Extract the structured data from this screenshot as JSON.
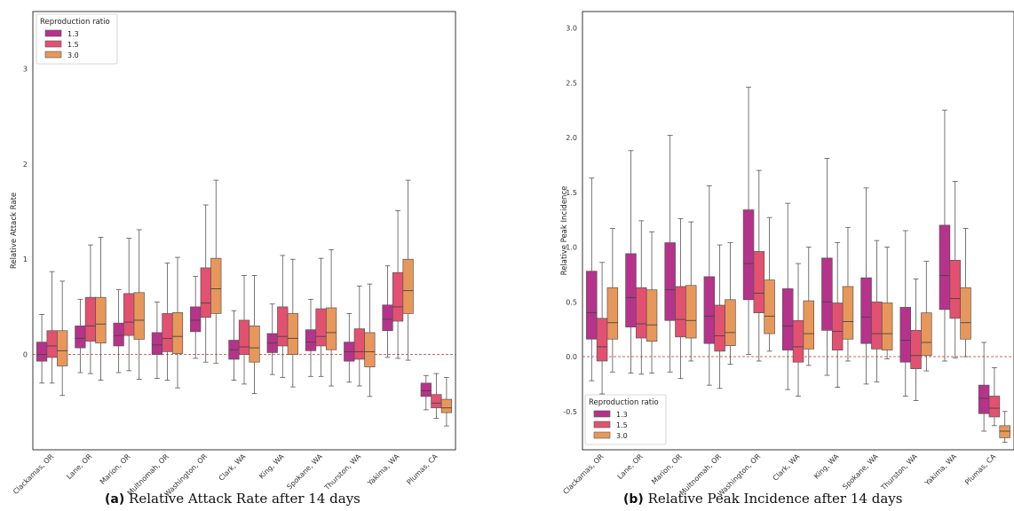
{
  "chart_data": [
    {
      "type": "box",
      "caption_letter": "(a)",
      "caption_text": "Relative Attack Rate after 14 days",
      "xlabel": "",
      "ylabel": "Relative Attack Rate",
      "ylim": [
        -1.0,
        3.6
      ],
      "yticks": [
        0,
        1,
        2,
        3
      ],
      "reference_line": 0,
      "legend": {
        "title": "Reproduction ratio",
        "position": "top-left",
        "entries": [
          "1.3",
          "1.5",
          "3.0"
        ]
      },
      "categories": [
        "Clackamas, OR",
        "Lane, OR",
        "Marion, OR",
        "Multnomah, OR",
        "Washington, OR",
        "Clark, WA",
        "King, WA",
        "Spokane, WA",
        "Thurston, WA",
        "Yakima, WA",
        "Plumas, CA"
      ],
      "series": [
        {
          "name": "1.3",
          "color": "#b5338a",
          "boxes": [
            {
              "min": -0.3,
              "q1": -0.07,
              "median": 0.0,
              "q3": 0.13,
              "max": 0.42
            },
            {
              "min": -0.19,
              "q1": 0.07,
              "median": 0.17,
              "q3": 0.3,
              "max": 0.58
            },
            {
              "min": -0.19,
              "q1": 0.09,
              "median": 0.2,
              "q3": 0.33,
              "max": 0.68
            },
            {
              "min": -0.25,
              "q1": 0.0,
              "median": 0.1,
              "q3": 0.23,
              "max": 0.55
            },
            {
              "min": -0.04,
              "q1": 0.24,
              "median": 0.36,
              "q3": 0.5,
              "max": 0.82
            },
            {
              "min": -0.27,
              "q1": -0.05,
              "median": 0.05,
              "q3": 0.15,
              "max": 0.46
            },
            {
              "min": -0.21,
              "q1": 0.02,
              "median": 0.12,
              "q3": 0.22,
              "max": 0.53
            },
            {
              "min": -0.23,
              "q1": 0.04,
              "median": 0.13,
              "q3": 0.26,
              "max": 0.58
            },
            {
              "min": -0.29,
              "q1": -0.07,
              "median": 0.03,
              "q3": 0.13,
              "max": 0.43
            },
            {
              "min": -0.03,
              "q1": 0.25,
              "median": 0.37,
              "q3": 0.52,
              "max": 0.93
            },
            {
              "min": -0.58,
              "q1": -0.44,
              "median": -0.38,
              "q3": -0.3,
              "max": -0.22
            }
          ]
        },
        {
          "name": "1.5",
          "color": "#e25170",
          "boxes": [
            {
              "min": -0.3,
              "q1": -0.03,
              "median": 0.09,
              "q3": 0.25,
              "max": 0.87
            },
            {
              "min": -0.2,
              "q1": 0.14,
              "median": 0.3,
              "q3": 0.6,
              "max": 1.15
            },
            {
              "min": -0.17,
              "q1": 0.2,
              "median": 0.34,
              "q3": 0.64,
              "max": 1.22
            },
            {
              "min": -0.27,
              "q1": 0.03,
              "median": 0.17,
              "q3": 0.43,
              "max": 0.96
            },
            {
              "min": -0.08,
              "q1": 0.39,
              "median": 0.54,
              "q3": 0.91,
              "max": 1.57
            },
            {
              "min": -0.31,
              "q1": 0.0,
              "median": 0.08,
              "q3": 0.36,
              "max": 0.83
            },
            {
              "min": -0.24,
              "q1": 0.09,
              "median": 0.19,
              "q3": 0.5,
              "max": 1.04
            },
            {
              "min": -0.23,
              "q1": 0.09,
              "median": 0.19,
              "q3": 0.48,
              "max": 1.01
            },
            {
              "min": -0.33,
              "q1": -0.05,
              "median": 0.03,
              "q3": 0.27,
              "max": 0.72
            },
            {
              "min": -0.04,
              "q1": 0.35,
              "median": 0.5,
              "q3": 0.86,
              "max": 1.51
            },
            {
              "min": -0.67,
              "q1": -0.56,
              "median": -0.51,
              "q3": -0.42,
              "max": -0.2
            }
          ]
        },
        {
          "name": "3.0",
          "color": "#e8975a",
          "boxes": [
            {
              "min": -0.43,
              "q1": -0.12,
              "median": 0.04,
              "q3": 0.25,
              "max": 0.77
            },
            {
              "min": -0.27,
              "q1": 0.12,
              "median": 0.32,
              "q3": 0.6,
              "max": 1.23
            },
            {
              "min": -0.26,
              "q1": 0.16,
              "median": 0.36,
              "q3": 0.65,
              "max": 1.31
            },
            {
              "min": -0.35,
              "q1": 0.01,
              "median": 0.19,
              "q3": 0.44,
              "max": 1.02
            },
            {
              "min": -0.09,
              "q1": 0.43,
              "median": 0.69,
              "q3": 1.01,
              "max": 1.83
            },
            {
              "min": -0.41,
              "q1": -0.08,
              "median": 0.07,
              "q3": 0.3,
              "max": 0.83
            },
            {
              "min": -0.34,
              "q1": 0.0,
              "median": 0.17,
              "q3": 0.43,
              "max": 1.0
            },
            {
              "min": -0.33,
              "q1": 0.05,
              "median": 0.23,
              "q3": 0.49,
              "max": 1.1
            },
            {
              "min": -0.44,
              "q1": -0.13,
              "median": 0.03,
              "q3": 0.23,
              "max": 0.74
            },
            {
              "min": -0.06,
              "q1": 0.43,
              "median": 0.67,
              "q3": 1.0,
              "max": 1.83
            },
            {
              "min": -0.75,
              "q1": -0.61,
              "median": -0.56,
              "q3": -0.47,
              "max": -0.24
            }
          ]
        }
      ]
    },
    {
      "type": "box",
      "caption_letter": "(b)",
      "caption_text": "Relative Peak Incidence after 14 days",
      "xlabel": "",
      "ylabel": "Relative Peak Incidence",
      "ylim": [
        -0.85,
        3.15
      ],
      "yticks": [
        "-0.5",
        "0.0",
        "0.5",
        "1.0",
        "1.5",
        "2.0",
        "2.5",
        "3.0"
      ],
      "reference_line": 0,
      "legend": {
        "title": "Reproduction ratio",
        "position": "bottom-left",
        "entries": [
          "1.3",
          "1.5",
          "3.0"
        ]
      },
      "categories": [
        "Clackamas, OR",
        "Lane, OR",
        "Marion, OR",
        "Multnomah, OR",
        "Washington, OR",
        "Clark, WA",
        "King, WA",
        "Spokane, WA",
        "Thurston, WA",
        "Yakima, WA",
        "Plumas, CA"
      ],
      "series": [
        {
          "name": "1.3",
          "color": "#b5338a",
          "boxes": [
            {
              "min": -0.22,
              "q1": 0.16,
              "median": 0.4,
              "q3": 0.78,
              "max": 1.63
            },
            {
              "min": -0.15,
              "q1": 0.27,
              "median": 0.54,
              "q3": 0.94,
              "max": 1.88
            },
            {
              "min": -0.14,
              "q1": 0.33,
              "median": 0.61,
              "q3": 1.04,
              "max": 2.02
            },
            {
              "min": -0.26,
              "q1": 0.12,
              "median": 0.37,
              "q3": 0.73,
              "max": 1.56
            },
            {
              "min": 0.02,
              "q1": 0.52,
              "median": 0.85,
              "q3": 1.34,
              "max": 2.46
            },
            {
              "min": -0.3,
              "q1": 0.06,
              "median": 0.28,
              "q3": 0.62,
              "max": 1.4
            },
            {
              "min": -0.17,
              "q1": 0.24,
              "median": 0.5,
              "q3": 0.9,
              "max": 1.81
            },
            {
              "min": -0.25,
              "q1": 0.12,
              "median": 0.36,
              "q3": 0.72,
              "max": 1.54
            },
            {
              "min": -0.36,
              "q1": -0.05,
              "median": 0.15,
              "q3": 0.45,
              "max": 1.15
            },
            {
              "min": -0.04,
              "q1": 0.43,
              "median": 0.74,
              "q3": 1.2,
              "max": 2.25
            },
            {
              "min": -0.68,
              "q1": -0.52,
              "median": -0.38,
              "q3": -0.26,
              "max": 0.13
            }
          ]
        },
        {
          "name": "1.5",
          "color": "#e25170",
          "boxes": [
            {
              "min": -0.34,
              "q1": -0.04,
              "median": 0.09,
              "q3": 0.35,
              "max": 0.86
            },
            {
              "min": -0.16,
              "q1": 0.17,
              "median": 0.3,
              "q3": 0.63,
              "max": 1.24
            },
            {
              "min": -0.2,
              "q1": 0.18,
              "median": 0.34,
              "q3": 0.64,
              "max": 1.26
            },
            {
              "min": -0.29,
              "q1": 0.05,
              "median": 0.19,
              "q3": 0.47,
              "max": 1.02
            },
            {
              "min": -0.04,
              "q1": 0.4,
              "median": 0.58,
              "q3": 0.96,
              "max": 1.7
            },
            {
              "min": -0.36,
              "q1": -0.05,
              "median": 0.09,
              "q3": 0.33,
              "max": 0.85
            },
            {
              "min": -0.28,
              "q1": 0.06,
              "median": 0.23,
              "q3": 0.49,
              "max": 1.04
            },
            {
              "min": -0.23,
              "q1": 0.07,
              "median": 0.21,
              "q3": 0.5,
              "max": 1.06
            },
            {
              "min": -0.4,
              "q1": -0.11,
              "median": 0.01,
              "q3": 0.24,
              "max": 0.71
            },
            {
              "min": -0.01,
              "q1": 0.35,
              "median": 0.53,
              "q3": 0.88,
              "max": 1.6
            },
            {
              "min": -0.63,
              "q1": -0.55,
              "median": -0.47,
              "q3": -0.36,
              "max": -0.1
            }
          ]
        },
        {
          "name": "3.0",
          "color": "#e8975a",
          "boxes": [
            {
              "min": -0.14,
              "q1": 0.16,
              "median": 0.31,
              "q3": 0.63,
              "max": 1.17
            },
            {
              "min": -0.15,
              "q1": 0.14,
              "median": 0.29,
              "q3": 0.61,
              "max": 1.14
            },
            {
              "min": -0.04,
              "q1": 0.17,
              "median": 0.33,
              "q3": 0.65,
              "max": 1.23
            },
            {
              "min": -0.07,
              "q1": 0.1,
              "median": 0.22,
              "q3": 0.52,
              "max": 1.04
            },
            {
              "min": 0.05,
              "q1": 0.21,
              "median": 0.37,
              "q3": 0.7,
              "max": 1.27
            },
            {
              "min": -0.08,
              "q1": 0.07,
              "median": 0.21,
              "q3": 0.51,
              "max": 1.0
            },
            {
              "min": -0.04,
              "q1": 0.16,
              "median": 0.32,
              "q3": 0.64,
              "max": 1.18
            },
            {
              "min": -0.02,
              "q1": 0.06,
              "median": 0.21,
              "q3": 0.49,
              "max": 1.0
            },
            {
              "min": -0.13,
              "q1": 0.01,
              "median": 0.13,
              "q3": 0.4,
              "max": 0.87
            },
            {
              "min": 0.0,
              "q1": 0.16,
              "median": 0.31,
              "q3": 0.63,
              "max": 1.17
            },
            {
              "min": -0.78,
              "q1": -0.74,
              "median": -0.68,
              "q3": -0.63,
              "max": -0.5
            }
          ]
        }
      ]
    }
  ]
}
